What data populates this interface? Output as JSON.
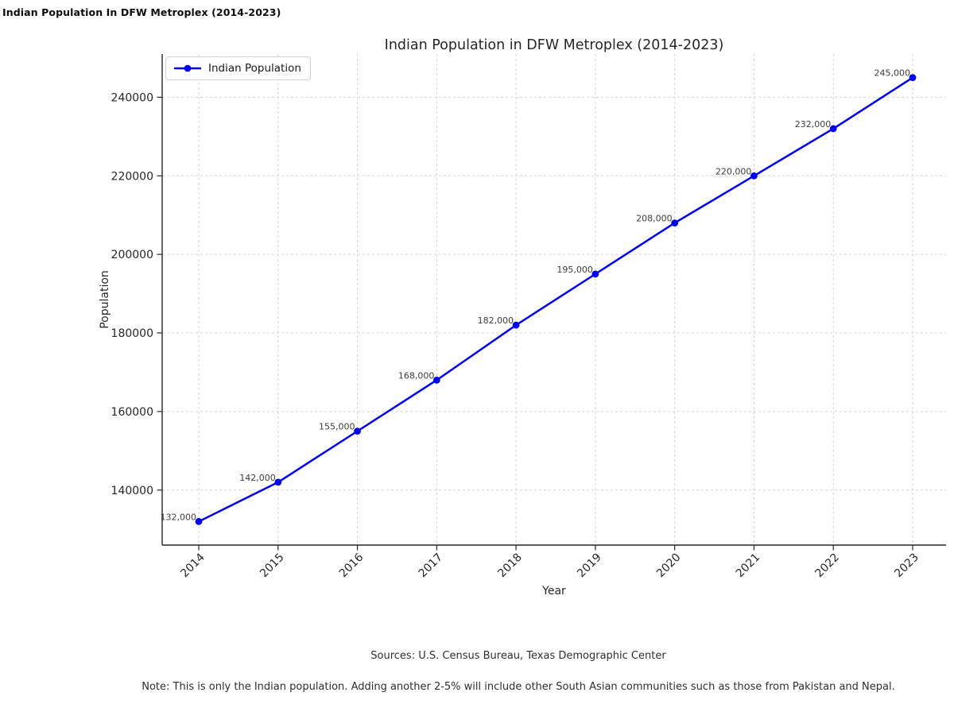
{
  "window": {
    "title": "Indian Population In DFW Metroplex (2014-2023)"
  },
  "chart_data": {
    "type": "line",
    "title": "Indian Population in DFW Metroplex (2014-2023)",
    "xlabel": "Year",
    "ylabel": "Population",
    "x": [
      2014,
      2015,
      2016,
      2017,
      2018,
      2019,
      2020,
      2021,
      2022,
      2023
    ],
    "series": [
      {
        "name": "Indian Population",
        "color": "#0000ff",
        "values": [
          132000,
          142000,
          155000,
          168000,
          182000,
          195000,
          208000,
          220000,
          232000,
          245000
        ],
        "point_labels": [
          "132,000",
          "142,000",
          "155,000",
          "168,000",
          "182,000",
          "195,000",
          "208,000",
          "220,000",
          "232,000",
          "245,000"
        ],
        "marker": "circle",
        "line_style": "solid"
      }
    ],
    "yticks": [
      140000,
      160000,
      180000,
      200000,
      220000,
      240000
    ],
    "ytick_labels": [
      "140000",
      "160000",
      "180000",
      "200000",
      "220000",
      "240000"
    ],
    "ylim": [
      126000,
      251000
    ],
    "xtick_rotation": 45,
    "grid": true,
    "grid_style": "dashed",
    "legend": {
      "position": "upper-left",
      "entries": [
        {
          "label": "Indian Population",
          "color": "#0000ff"
        }
      ]
    }
  },
  "footer": {
    "sources": "Sources: U.S. Census Bureau, Texas Demographic Center",
    "note": "Note: This is only the Indian population. Adding another 2-5% will include other South Asian communities such as those from Pakistan and Nepal."
  },
  "colors": {
    "line": "#0000ff",
    "grid": "#d4d4d4",
    "axis": "#262626",
    "tick_text": "#262626",
    "point_label_text": "#3c3c3c",
    "title_text": "#262626"
  }
}
